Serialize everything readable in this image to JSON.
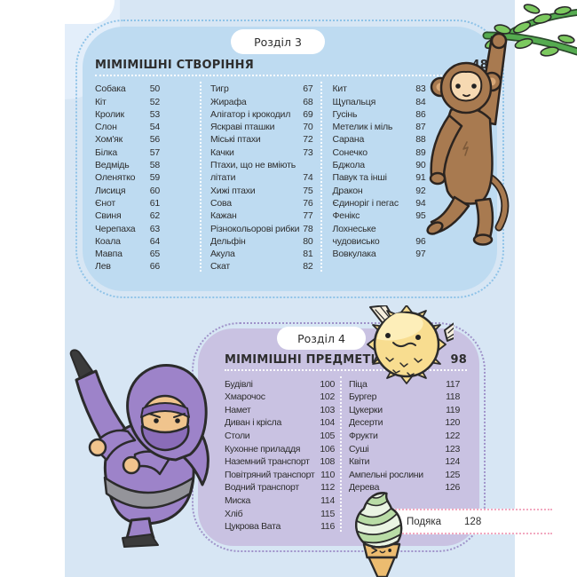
{
  "colors": {
    "page_bg": "#d7e6f4",
    "margin": "#ffffff",
    "text": "#2e2e2e",
    "box3": "#bedbf1",
    "box3_dots": "#8fc3e8",
    "box4": "#c9c2e2",
    "box4_dots": "#9f92c9",
    "band_dots": "#f2a9c0"
  },
  "section3": {
    "pill_label": "Розділ 3",
    "title": "МІМІМІШНІ СТВОРІННЯ",
    "page_number": "48",
    "columns": [
      {
        "entries": [
          {
            "label": "Собака",
            "page": "50"
          },
          {
            "label": "Кіт",
            "page": "52"
          },
          {
            "label": "Кролик",
            "page": "53"
          },
          {
            "label": "Слон",
            "page": "54"
          },
          {
            "label": "Хом'як",
            "page": "56"
          },
          {
            "label": "Білка",
            "page": "57"
          },
          {
            "label": "Ведмідь",
            "page": "58"
          },
          {
            "label": "Оленятко",
            "page": "59"
          },
          {
            "label": "Лисиця",
            "page": "60"
          },
          {
            "label": "Єнот",
            "page": "61"
          },
          {
            "label": "Свиня",
            "page": "62"
          },
          {
            "label": "Черепаха",
            "page": "63"
          },
          {
            "label": "Коала",
            "page": "64"
          },
          {
            "label": "Мавпа",
            "page": "65"
          },
          {
            "label": "Лев",
            "page": "66"
          }
        ]
      },
      {
        "entries": [
          {
            "label": "Тигр",
            "page": "67"
          },
          {
            "label": "Жирафа",
            "page": "68"
          },
          {
            "label": "Алігатор і крокодил",
            "page": "69"
          },
          {
            "label": "Яскраві пташки",
            "page": "70"
          },
          {
            "label": "Міські птахи",
            "page": "72"
          },
          {
            "label": "Качки",
            "page": "73"
          },
          {
            "label": "Птахи, що не вміють",
            "page": ""
          },
          {
            "label": "літати",
            "page": "74"
          },
          {
            "label": "Хижі птахи",
            "page": "75"
          },
          {
            "label": "Сова",
            "page": "76"
          },
          {
            "label": "Кажан",
            "page": "77"
          },
          {
            "label": "Різнокольорові рибки",
            "page": "78"
          },
          {
            "label": "Дельфін",
            "page": "80"
          },
          {
            "label": "Акула",
            "page": "81"
          },
          {
            "label": "Скат",
            "page": "82"
          }
        ]
      },
      {
        "entries": [
          {
            "label": "Кит",
            "page": "83"
          },
          {
            "label": "Щупальця",
            "page": "84"
          },
          {
            "label": "Гусінь",
            "page": "86"
          },
          {
            "label": "Метелик і міль",
            "page": "87"
          },
          {
            "label": "Сарана",
            "page": "88"
          },
          {
            "label": "Сонечко",
            "page": "89"
          },
          {
            "label": "Бджола",
            "page": "90"
          },
          {
            "label": "Павук та інші",
            "page": "91"
          },
          {
            "label": "Дракон",
            "page": "92"
          },
          {
            "label": "Єдиноріг і пегас",
            "page": "94"
          },
          {
            "label": "Фенікс",
            "page": "95"
          },
          {
            "label": "Лохнеське",
            "page": ""
          },
          {
            "label": "чудовисько",
            "page": "96"
          },
          {
            "label": "Вовкулака",
            "page": "97"
          }
        ]
      }
    ]
  },
  "section4": {
    "pill_label": "Розділ 4",
    "title": "МІМІМІШНІ ПРЕДМЕТИ",
    "page_number": "98",
    "columns": [
      {
        "entries": [
          {
            "label": "Будівлі",
            "page": "100"
          },
          {
            "label": "Хмарочос",
            "page": "102"
          },
          {
            "label": "Намет",
            "page": "103"
          },
          {
            "label": "Диван і крісла",
            "page": "104"
          },
          {
            "label": "Столи",
            "page": "105"
          },
          {
            "label": "Кухонне приладдя",
            "page": "106"
          },
          {
            "label": "Наземний транспорт",
            "page": "108"
          },
          {
            "label": "Повітряний транспорт",
            "page": "110"
          },
          {
            "label": "Водний транспорт",
            "page": "112"
          },
          {
            "label": "Миска",
            "page": "114"
          },
          {
            "label": "Хліб",
            "page": "115"
          },
          {
            "label": "Цукрова Вата",
            "page": "116"
          }
        ]
      },
      {
        "entries": [
          {
            "label": "Піца",
            "page": "117"
          },
          {
            "label": "Бургер",
            "page": "118"
          },
          {
            "label": "Цукерки",
            "page": "119"
          },
          {
            "label": "Десерти",
            "page": "120"
          },
          {
            "label": "Фрукти",
            "page": "122"
          },
          {
            "label": "Суші",
            "page": "123"
          },
          {
            "label": "Квіти",
            "page": "124"
          },
          {
            "label": "Ампельні рослини",
            "page": "125"
          },
          {
            "label": "Дерева",
            "page": "126"
          }
        ]
      }
    ]
  },
  "footer": {
    "label": "Подяка",
    "page": "128"
  },
  "illustrations": {
    "top_right": "monkey-hanging-from-branch",
    "section4_header": "pufferfish",
    "left": "ninja-kicking",
    "bottom": "soft-serve-ice-cream-cone"
  }
}
